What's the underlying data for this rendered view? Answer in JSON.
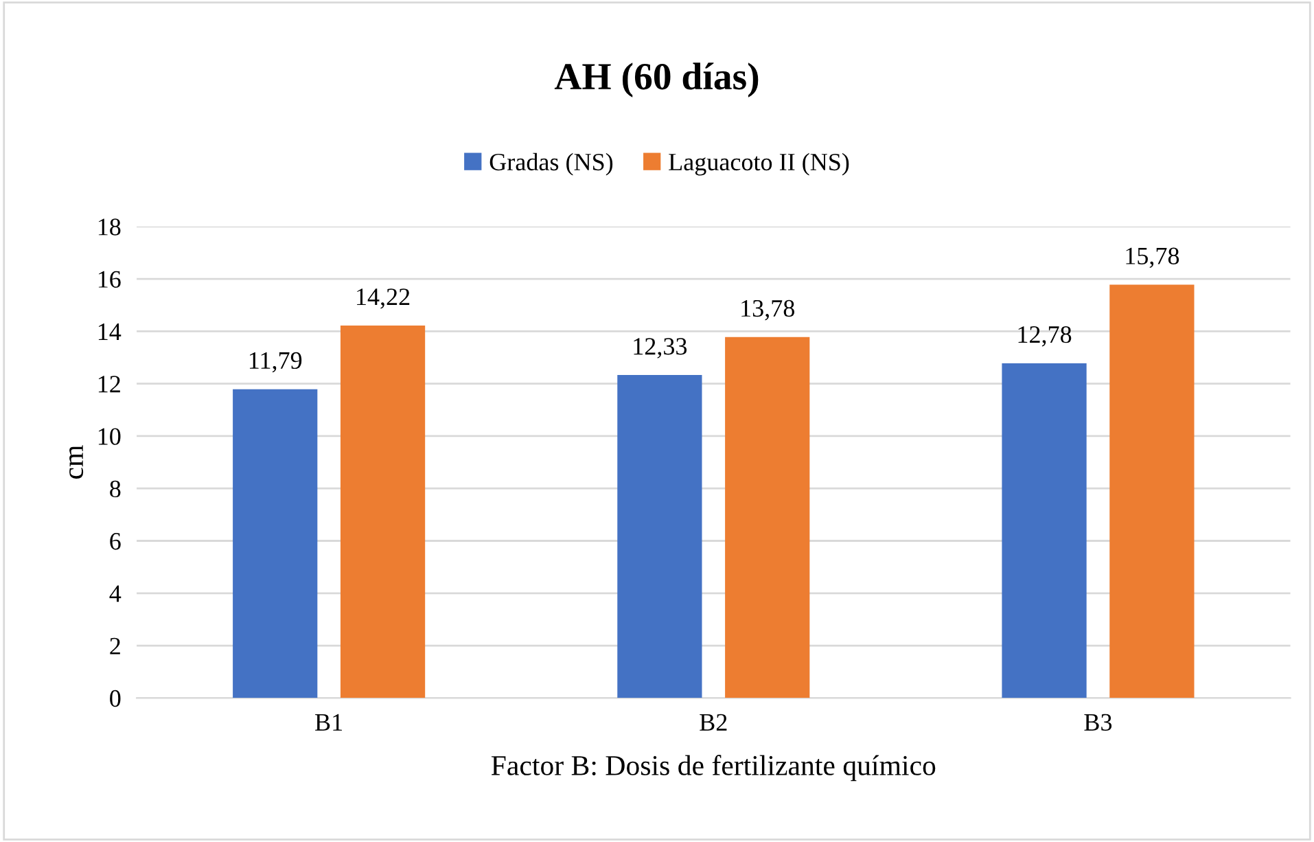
{
  "chart_data": {
    "type": "bar",
    "title": "AH (60 días)",
    "xlabel": "Factor B: Dosis de fertilizante químico",
    "ylabel": "cm",
    "categories": [
      "B1",
      "B2",
      "B3"
    ],
    "series": [
      {
        "name": "Gradas (NS)",
        "color": "#4472c4",
        "values": [
          11.79,
          12.33,
          12.78
        ],
        "value_labels": [
          "11,79",
          "12,33",
          "12,78"
        ]
      },
      {
        "name": "Laguacoto II (NS)",
        "color": "#ed7d31",
        "values": [
          14.22,
          13.78,
          15.78
        ],
        "value_labels": [
          "14,22",
          "13,78",
          "15,78"
        ]
      }
    ],
    "ylim": [
      0,
      18
    ],
    "yticks": [
      0,
      2,
      4,
      6,
      8,
      10,
      12,
      14,
      16,
      18
    ],
    "grid": "y",
    "legend": "top"
  }
}
